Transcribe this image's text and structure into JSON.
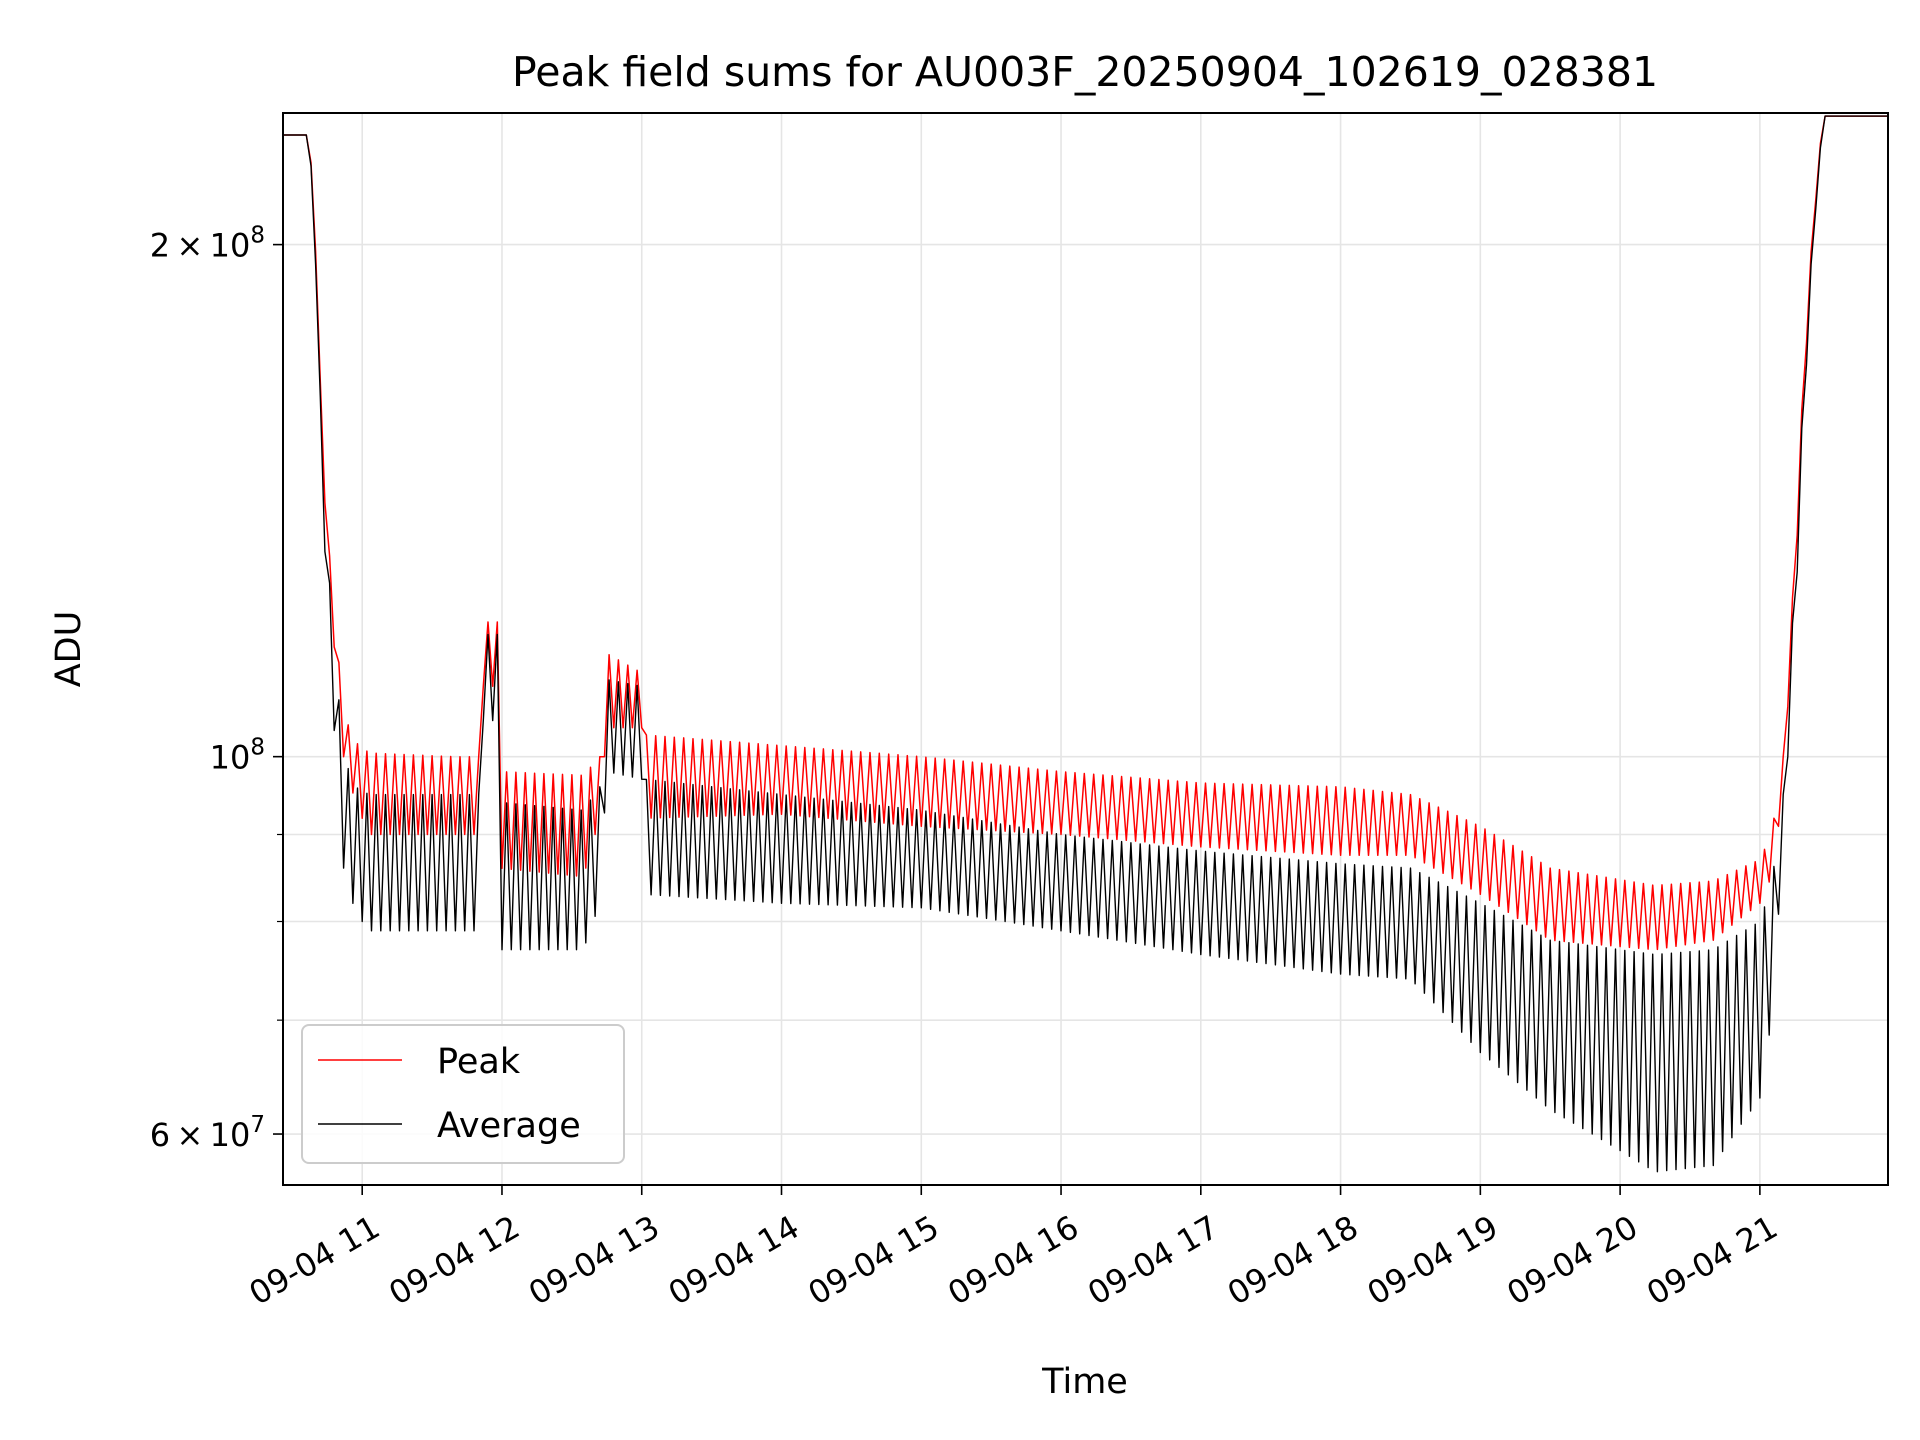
{
  "chart_data": {
    "type": "line",
    "title": "Peak field sums for AU003F_20250904_102619_028381",
    "xlabel": "Time",
    "ylabel": "ADU",
    "yscale": "log",
    "xlim": [
      "2025-09-04 10:26",
      "2025-09-04 21:55"
    ],
    "ylim": [
      56000000,
      239000000
    ],
    "grid": true,
    "legend_position": "bottom-left",
    "x_ticks": [
      "09-04 11",
      "09-04 12",
      "09-04 13",
      "09-04 14",
      "09-04 15",
      "09-04 16",
      "09-04 17",
      "09-04 18",
      "09-04 19",
      "09-04 20",
      "09-04 21"
    ],
    "x_tick_rotation_deg": 30,
    "y_ticks": [
      {
        "value": 200000000,
        "mantissa": "2",
        "exponent": "8"
      },
      {
        "value": 100000000,
        "mantissa": "",
        "exponent": "8"
      },
      {
        "value": 60000000,
        "mantissa": "6",
        "exponent": "7"
      }
    ],
    "y_minor_ticks": [
      70000000,
      80000000,
      90000000
    ],
    "oscillation_period_minutes": 4,
    "series": [
      {
        "name": "Peak",
        "color": "#ff0000",
        "points": [
          [
            "2025-09-04 10:26",
            232000000,
            232000000
          ],
          [
            "2025-09-04 10:37",
            232000000,
            232000000
          ],
          [
            "2025-09-04 10:39",
            215000000,
            215000000
          ],
          [
            "2025-09-04 10:43",
            150000000,
            148000000
          ],
          [
            "2025-09-04 10:47",
            125000000,
            120000000
          ],
          [
            "2025-09-04 10:52",
            106000000,
            100000000
          ],
          [
            "2025-09-04 10:57",
            102000000,
            94000000
          ],
          [
            "2025-09-04 11:03",
            100500000,
            90000000
          ],
          [
            "2025-09-04 11:40",
            100000000,
            90000000
          ],
          [
            "2025-09-04 11:50",
            100000000,
            90000000
          ],
          [
            "2025-09-04 11:51",
            120000000,
            110000000
          ],
          [
            "2025-09-04 11:58",
            120000000,
            110000000
          ],
          [
            "2025-09-04 11:59",
            98000000,
            86000000
          ],
          [
            "2025-09-04 12:35",
            97500000,
            85000000
          ],
          [
            "2025-09-04 12:42",
            100000000,
            92000000
          ],
          [
            "2025-09-04 12:45",
            115000000,
            104000000
          ],
          [
            "2025-09-04 13:00",
            112000000,
            104000000
          ],
          [
            "2025-09-04 13:01",
            103000000,
            92000000
          ],
          [
            "2025-09-04 14:00",
            101500000,
            92500000
          ],
          [
            "2025-09-04 15:00",
            100000000,
            91000000
          ],
          [
            "2025-09-04 16:00",
            98000000,
            90000000
          ],
          [
            "2025-09-04 17:00",
            96500000,
            88500000
          ],
          [
            "2025-09-04 18:00",
            96000000,
            87500000
          ],
          [
            "2025-09-04 18:30",
            95000000,
            87500000
          ],
          [
            "2025-09-04 19:00",
            91000000,
            83000000
          ],
          [
            "2025-09-04 19:30",
            86000000,
            78000000
          ],
          [
            "2025-09-04 20:15",
            84000000,
            77000000
          ],
          [
            "2025-09-04 20:40",
            84500000,
            78000000
          ],
          [
            "2025-09-04 21:00",
            87000000,
            82000000
          ],
          [
            "2025-09-04 21:05",
            90000000,
            85000000
          ],
          [
            "2025-09-04 21:10",
            100000000,
            95000000
          ],
          [
            "2025-09-04 21:15",
            130000000,
            125000000
          ],
          [
            "2025-09-04 21:20",
            180000000,
            175000000
          ],
          [
            "2025-09-04 21:25",
            225000000,
            222000000
          ],
          [
            "2025-09-04 21:28",
            238000000,
            238000000
          ],
          [
            "2025-09-04 21:55",
            238000000,
            238000000
          ]
        ]
      },
      {
        "name": "Average",
        "color": "#000000",
        "points": [
          [
            "2025-09-04 10:26",
            232000000,
            232000000
          ],
          [
            "2025-09-04 10:37",
            232000000,
            232000000
          ],
          [
            "2025-09-04 10:39",
            213000000,
            213000000
          ],
          [
            "2025-09-04 10:43",
            146000000,
            140000000
          ],
          [
            "2025-09-04 10:47",
            120000000,
            108000000
          ],
          [
            "2025-09-04 10:52",
            100000000,
            86000000
          ],
          [
            "2025-09-04 10:57",
            96000000,
            81000000
          ],
          [
            "2025-09-04 11:03",
            95000000,
            79000000
          ],
          [
            "2025-09-04 11:40",
            95000000,
            79000000
          ],
          [
            "2025-09-04 11:50",
            95000000,
            79000000
          ],
          [
            "2025-09-04 11:51",
            118000000,
            105000000
          ],
          [
            "2025-09-04 11:58",
            118000000,
            105000000
          ],
          [
            "2025-09-04 11:59",
            94000000,
            77000000
          ],
          [
            "2025-09-04 12:35",
            93000000,
            77000000
          ],
          [
            "2025-09-04 12:42",
            96000000,
            82000000
          ],
          [
            "2025-09-04 12:45",
            111000000,
            98000000
          ],
          [
            "2025-09-04 13:00",
            110000000,
            97000000
          ],
          [
            "2025-09-04 13:01",
            97000000,
            83000000
          ],
          [
            "2025-09-04 14:00",
            95000000,
            82000000
          ],
          [
            "2025-09-04 15:00",
            93000000,
            81500000
          ],
          [
            "2025-09-04 16:00",
            90000000,
            79000000
          ],
          [
            "2025-09-04 17:00",
            88000000,
            76500000
          ],
          [
            "2025-09-04 18:00",
            86500000,
            74500000
          ],
          [
            "2025-09-04 18:30",
            86000000,
            74000000
          ],
          [
            "2025-09-04 19:00",
            82000000,
            67000000
          ],
          [
            "2025-09-04 19:30",
            78000000,
            62000000
          ],
          [
            "2025-09-04 20:15",
            76500000,
            57000000
          ],
          [
            "2025-09-04 20:40",
            77000000,
            57500000
          ],
          [
            "2025-09-04 21:00",
            80000000,
            63000000
          ],
          [
            "2025-09-04 21:05",
            84000000,
            70000000
          ],
          [
            "2025-09-04 21:10",
            95000000,
            88000000
          ],
          [
            "2025-09-04 21:15",
            126000000,
            118000000
          ],
          [
            "2025-09-04 21:20",
            176000000,
            170000000
          ],
          [
            "2025-09-04 21:25",
            223000000,
            220000000
          ],
          [
            "2025-09-04 21:28",
            238000000,
            238000000
          ],
          [
            "2025-09-04 21:55",
            238000000,
            238000000
          ]
        ]
      }
    ]
  }
}
